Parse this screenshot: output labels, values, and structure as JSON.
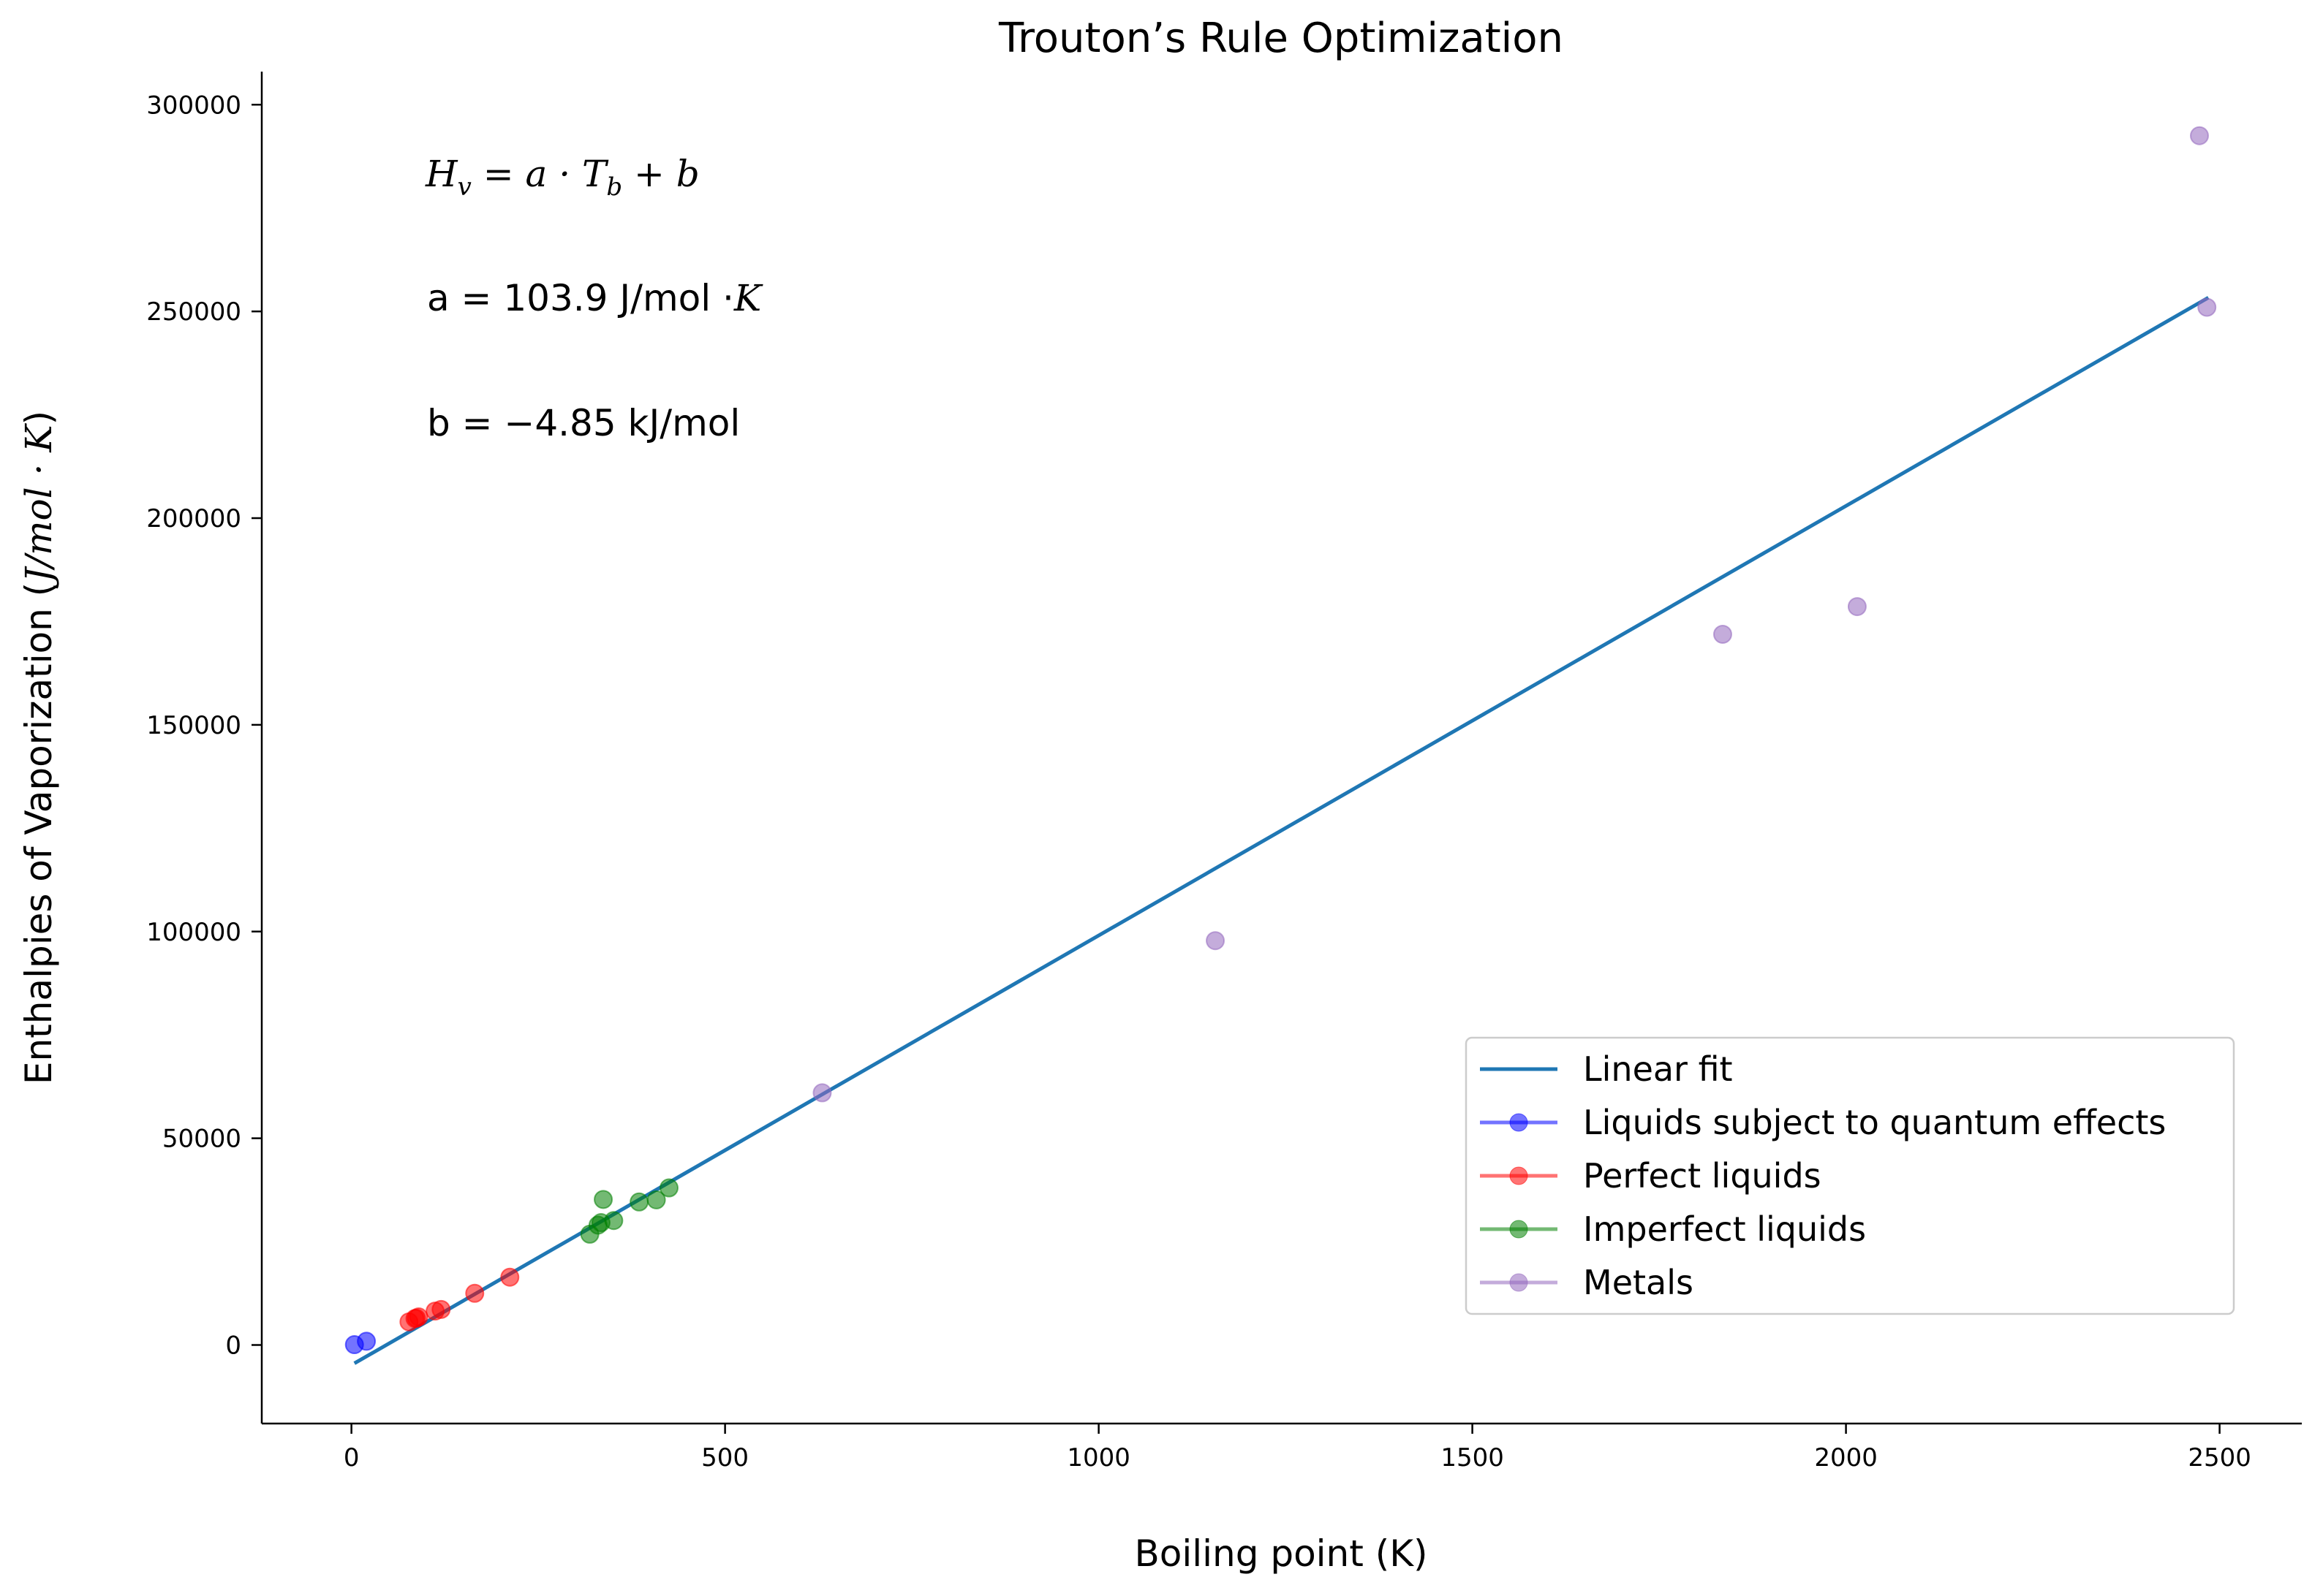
{
  "chart_data": {
    "type": "scatter",
    "title": "Trouton’s Rule Optimization",
    "xlabel": "Boiling point (K)",
    "ylabel": "Enthalpies of Vaporization (J/mol · K)",
    "ylabel_plain": "Enthalpies of Vaporization (",
    "ylabel_math": "J/mol · K",
    "ylabel_close": ")",
    "xlim": [
      -120,
      2610
    ],
    "ylim": [
      -19000,
      308000
    ],
    "xticks": [
      0,
      500,
      1000,
      1500,
      2000,
      2500
    ],
    "yticks": [
      0,
      50000,
      100000,
      150000,
      200000,
      250000,
      300000
    ],
    "grid": false,
    "legend_position": "lower-right",
    "annotations": {
      "equation_lhs": "H",
      "equation_sub": "v",
      "equation_rhs": " = a · T",
      "equation_sub2": "b",
      "equation_tail": " + b",
      "a_line": "a = 103.9 J/mol ·",
      "a_unit": "K",
      "b_line": "b = −4.85 kJ/mol"
    },
    "fit": {
      "name": "Linear fit",
      "color": "#1f77b4",
      "slope": 103.9,
      "intercept": -4850,
      "x_range": [
        4,
        2485
      ]
    },
    "series": [
      {
        "name": "Liquids subject to quantum effects",
        "color": "#0000ff",
        "x": [
          4,
          20
        ],
        "y": [
          80,
          900
        ]
      },
      {
        "name": "Perfect liquids",
        "color": "#ff0000",
        "x": [
          77,
          85,
          87,
          90,
          112,
          120,
          165,
          212
        ],
        "y": [
          5600,
          6400,
          6500,
          6800,
          8200,
          8600,
          12500,
          16400
        ]
      },
      {
        "name": "Imperfect liquids",
        "color": "#008000",
        "x": [
          319,
          330,
          334,
          337,
          351,
          385,
          408,
          425
        ],
        "y": [
          26800,
          29000,
          29600,
          35200,
          30100,
          34600,
          35100,
          38000
        ]
      },
      {
        "name": "Metals",
        "color": "#9467bd",
        "x": [
          630,
          1156,
          1835,
          2015,
          2473,
          2483
        ],
        "y": [
          61000,
          97800,
          171900,
          178600,
          292500,
          251000
        ]
      }
    ]
  }
}
